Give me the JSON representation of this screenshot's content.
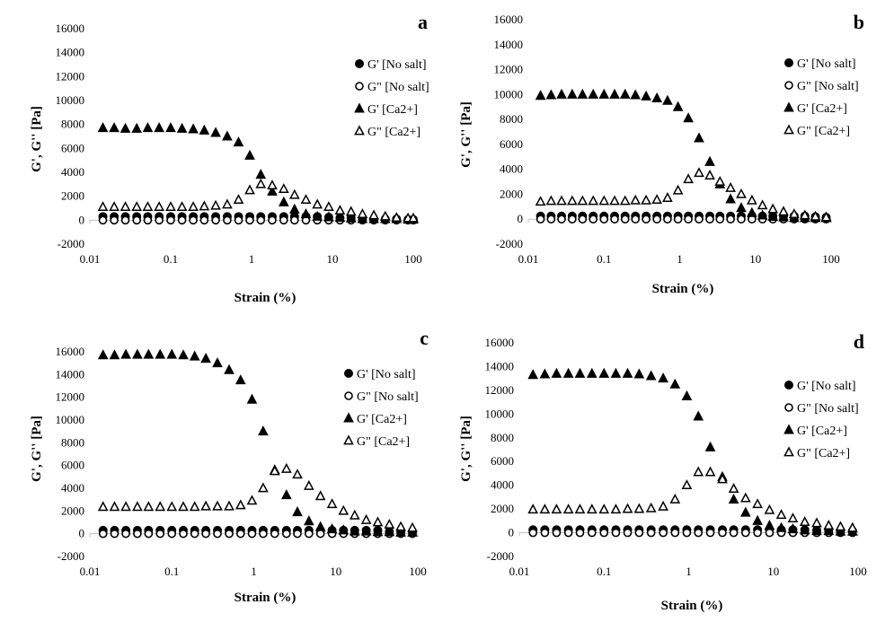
{
  "figure": {
    "background": "#ffffff",
    "marker_color": "#000000"
  },
  "chart_data": [
    {
      "type": "scatter",
      "panel_label": "a",
      "xlabel": "Strain (%)",
      "ylabel": "G', G'' [Pa]",
      "xscale": "log",
      "xlim": [
        0.01,
        100
      ],
      "ylim": [
        -2000,
        16000
      ],
      "xticks": [
        "0.01",
        "0.1",
        "1",
        "10",
        "100"
      ],
      "yticks": [
        "-2000",
        "0",
        "2000",
        "4000",
        "6000",
        "8000",
        "10000",
        "12000",
        "14000",
        "16000"
      ],
      "grid": false,
      "legend_position": "right",
      "x": [
        0.0145,
        0.02,
        0.0275,
        0.038,
        0.052,
        0.072,
        0.1,
        0.138,
        0.19,
        0.26,
        0.36,
        0.5,
        0.69,
        0.95,
        1.3,
        1.8,
        2.5,
        3.4,
        4.7,
        6.5,
        9.0,
        12.4,
        17,
        23.5,
        32.5,
        45,
        62,
        86,
        100
      ],
      "series": [
        {
          "name": "G' [No salt]",
          "marker": "filled-circle",
          "values": [
            300,
            300,
            300,
            300,
            300,
            300,
            300,
            300,
            300,
            300,
            300,
            300,
            300,
            300,
            300,
            300,
            300,
            300,
            300,
            300,
            250,
            200,
            200,
            150,
            100,
            100,
            100,
            50,
            50
          ]
        },
        {
          "name": "G\" [No salt]",
          "marker": "open-circle",
          "values": [
            0,
            0,
            0,
            0,
            0,
            0,
            0,
            0,
            0,
            0,
            0,
            0,
            0,
            0,
            0,
            0,
            0,
            0,
            0,
            0,
            0,
            0,
            0,
            0,
            0,
            0,
            0,
            0,
            0
          ]
        },
        {
          "name": "G' [Ca2+]",
          "marker": "filled-triangle",
          "values": [
            7700,
            7700,
            7650,
            7650,
            7700,
            7700,
            7700,
            7650,
            7600,
            7500,
            7300,
            7000,
            6500,
            5400,
            3800,
            2400,
            1500,
            900,
            500,
            300,
            250,
            200,
            150,
            100,
            100,
            100,
            100,
            50,
            50
          ]
        },
        {
          "name": "G\" [Ca2+]",
          "marker": "open-triangle",
          "values": [
            1100,
            1100,
            1100,
            1100,
            1100,
            1100,
            1100,
            1100,
            1100,
            1150,
            1200,
            1300,
            1700,
            2500,
            3000,
            2900,
            2600,
            2100,
            1700,
            1300,
            1100,
            800,
            700,
            500,
            400,
            300,
            200,
            150,
            150
          ]
        }
      ]
    },
    {
      "type": "scatter",
      "panel_label": "b",
      "xlabel": "Strain (%)",
      "ylabel": "G', G'' [Pa]",
      "xscale": "log",
      "xlim": [
        0.01,
        100
      ],
      "ylim": [
        -2000,
        16000
      ],
      "xticks": [
        "0.01",
        "0.1",
        "1",
        "10",
        "100"
      ],
      "yticks": [
        "-2000",
        "0",
        "2000",
        "4000",
        "6000",
        "8000",
        "10000",
        "12000",
        "14000",
        "16000"
      ],
      "grid": false,
      "legend_position": "right",
      "x": [
        0.0145,
        0.02,
        0.0275,
        0.038,
        0.052,
        0.072,
        0.1,
        0.138,
        0.19,
        0.26,
        0.36,
        0.5,
        0.69,
        0.95,
        1.3,
        1.8,
        2.5,
        3.4,
        4.7,
        6.5,
        9.0,
        12.4,
        17,
        23.5,
        32.5,
        45,
        62,
        86
      ],
      "series": [
        {
          "name": "G' [No salt]",
          "marker": "filled-circle",
          "values": [
            250,
            250,
            250,
            250,
            250,
            250,
            250,
            250,
            250,
            250,
            250,
            250,
            250,
            250,
            250,
            250,
            250,
            250,
            250,
            250,
            250,
            250,
            250,
            250,
            250,
            250,
            200,
            150
          ]
        },
        {
          "name": "G\" [No salt]",
          "marker": "open-circle",
          "values": [
            0,
            0,
            0,
            0,
            0,
            0,
            0,
            0,
            0,
            0,
            0,
            0,
            0,
            0,
            0,
            0,
            0,
            0,
            0,
            0,
            0,
            0,
            0,
            0,
            0,
            0,
            0,
            0
          ]
        },
        {
          "name": "G' [Ca2+]",
          "marker": "filled-triangle",
          "values": [
            9900,
            9950,
            10000,
            10000,
            10000,
            10000,
            10000,
            10000,
            10000,
            9950,
            9850,
            9700,
            9500,
            9000,
            8100,
            6500,
            4600,
            2800,
            1600,
            900,
            500,
            300,
            200,
            150,
            100,
            100,
            100,
            100
          ]
        },
        {
          "name": "G\" [Ca2+]",
          "marker": "open-triangle",
          "values": [
            1400,
            1450,
            1450,
            1450,
            1450,
            1450,
            1450,
            1450,
            1450,
            1500,
            1500,
            1550,
            1700,
            2300,
            3200,
            3700,
            3500,
            3000,
            2500,
            2000,
            1500,
            1100,
            800,
            600,
            400,
            300,
            200,
            150
          ]
        }
      ]
    },
    {
      "type": "scatter",
      "panel_label": "c",
      "xlabel": "Strain (%)",
      "ylabel": "G', G'' [Pa]",
      "xscale": "log",
      "xlim": [
        0.01,
        100
      ],
      "ylim": [
        -2000,
        16000
      ],
      "xticks": [
        "0.01",
        "0.1",
        "1",
        "10",
        "100"
      ],
      "yticks": [
        "-2000",
        "0",
        "2000",
        "4000",
        "6000",
        "8000",
        "10000",
        "12000",
        "14000",
        "16000"
      ],
      "grid": false,
      "legend_position": "right",
      "x": [
        0.0145,
        0.02,
        0.0275,
        0.038,
        0.052,
        0.072,
        0.1,
        0.138,
        0.19,
        0.26,
        0.36,
        0.5,
        0.69,
        0.95,
        1.3,
        1.8,
        2.5,
        3.4,
        4.7,
        6.5,
        9.0,
        12.4,
        17,
        23.5,
        32.5,
        45,
        62,
        86
      ],
      "series": [
        {
          "name": "G' [No salt]",
          "marker": "filled-circle",
          "values": [
            300,
            300,
            300,
            300,
            300,
            300,
            300,
            300,
            300,
            300,
            300,
            300,
            300,
            300,
            300,
            300,
            300,
            300,
            300,
            300,
            300,
            300,
            300,
            300,
            300,
            200,
            200,
            200
          ]
        },
        {
          "name": "G\" [No salt]",
          "marker": "open-circle",
          "values": [
            0,
            0,
            0,
            0,
            0,
            0,
            0,
            0,
            0,
            0,
            0,
            0,
            0,
            0,
            0,
            0,
            0,
            0,
            0,
            0,
            0,
            0,
            0,
            0,
            0,
            0,
            0,
            0
          ]
        },
        {
          "name": "G' [Ca2+]",
          "marker": "filled-triangle",
          "values": [
            15700,
            15700,
            15750,
            15750,
            15750,
            15750,
            15750,
            15700,
            15600,
            15400,
            15000,
            14400,
            13500,
            11800,
            9000,
            5600,
            3400,
            1900,
            1100,
            600,
            400,
            300,
            200,
            200,
            150,
            150,
            100,
            100
          ]
        },
        {
          "name": "G\" [Ca2+]",
          "marker": "open-triangle",
          "values": [
            2350,
            2350,
            2350,
            2350,
            2350,
            2350,
            2350,
            2350,
            2350,
            2400,
            2400,
            2400,
            2500,
            2900,
            4000,
            5500,
            5700,
            5200,
            4200,
            3300,
            2600,
            2000,
            1600,
            1200,
            1000,
            800,
            600,
            500
          ]
        }
      ]
    },
    {
      "type": "scatter",
      "panel_label": "d",
      "xlabel": "Strain (%)",
      "ylabel": "G', G'' [Pa]",
      "xscale": "log",
      "xlim": [
        0.01,
        100
      ],
      "ylim": [
        -2000,
        16000
      ],
      "xticks": [
        "0.01",
        "0.1",
        "1",
        "10",
        "100"
      ],
      "yticks": [
        "-2000",
        "0",
        "2000",
        "4000",
        "6000",
        "8000",
        "10000",
        "12000",
        "14000",
        "16000"
      ],
      "grid": false,
      "legend_position": "right",
      "x": [
        0.0145,
        0.02,
        0.0275,
        0.038,
        0.052,
        0.072,
        0.1,
        0.138,
        0.19,
        0.26,
        0.36,
        0.5,
        0.69,
        0.95,
        1.3,
        1.8,
        2.5,
        3.4,
        4.7,
        6.5,
        9.0,
        12.4,
        17,
        23.5,
        32.5,
        45,
        62,
        86
      ],
      "series": [
        {
          "name": "G' [No salt]",
          "marker": "filled-circle",
          "values": [
            250,
            250,
            250,
            250,
            250,
            250,
            250,
            250,
            250,
            250,
            250,
            250,
            250,
            250,
            250,
            250,
            250,
            250,
            250,
            250,
            250,
            250,
            250,
            250,
            200,
            200,
            150,
            150
          ]
        },
        {
          "name": "G\" [No salt]",
          "marker": "open-circle",
          "values": [
            0,
            0,
            0,
            0,
            0,
            0,
            0,
            0,
            0,
            0,
            0,
            0,
            0,
            0,
            0,
            0,
            0,
            0,
            0,
            0,
            0,
            0,
            0,
            0,
            0,
            0,
            0,
            0
          ]
        },
        {
          "name": "G' [Ca2+]",
          "marker": "filled-triangle",
          "values": [
            13300,
            13350,
            13400,
            13400,
            13400,
            13400,
            13400,
            13400,
            13400,
            13350,
            13200,
            13000,
            12500,
            11500,
            9800,
            7200,
            4700,
            2800,
            1700,
            1000,
            600,
            400,
            300,
            200,
            150,
            150,
            100,
            100
          ]
        },
        {
          "name": "G\" [Ca2+]",
          "marker": "open-triangle",
          "values": [
            1950,
            1950,
            1950,
            1950,
            1950,
            1950,
            1950,
            1950,
            2000,
            2000,
            2050,
            2200,
            2800,
            4000,
            5100,
            5100,
            4500,
            3700,
            2900,
            2400,
            1900,
            1500,
            1200,
            900,
            800,
            600,
            500,
            400
          ]
        }
      ]
    }
  ]
}
